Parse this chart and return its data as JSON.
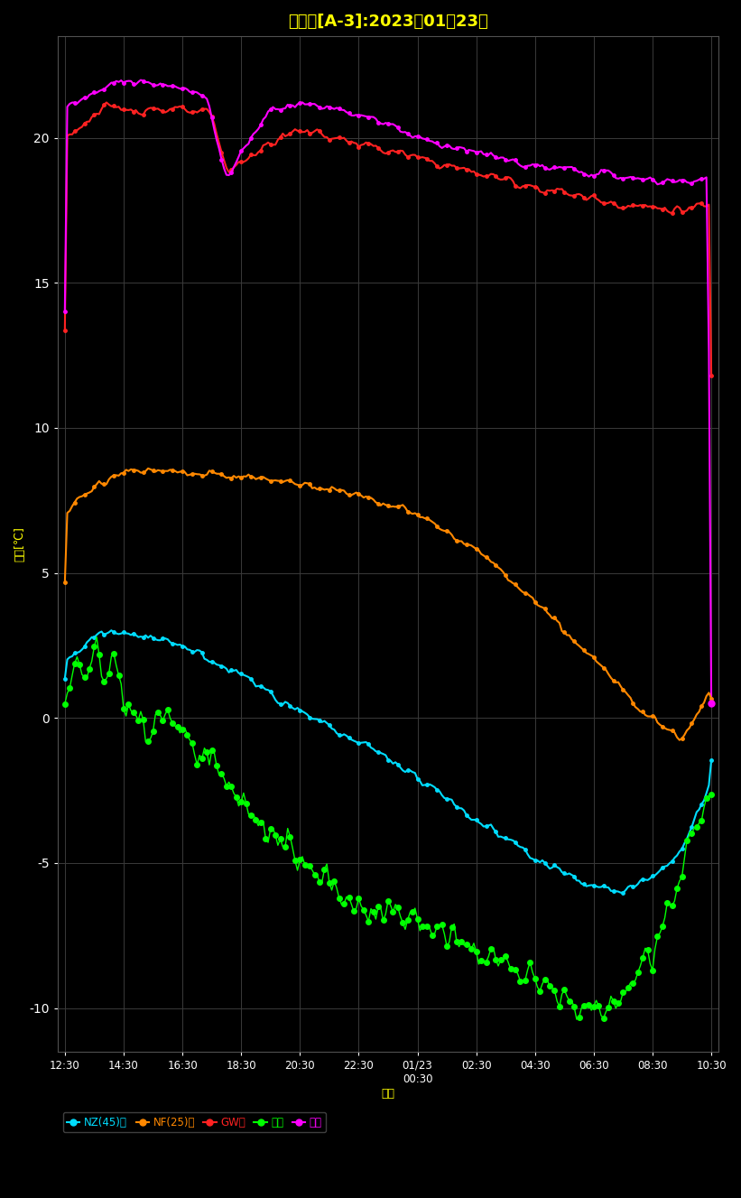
{
  "title": "展示場[A-3]:2023年01月23日",
  "ylabel": "気温[℃]",
  "xlabel": "日時",
  "background_color": "#000000",
  "text_color": "#ffff00",
  "grid_color": "#3a3a3a",
  "ylim": [
    -11.5,
    23.5
  ],
  "yticks": [
    -10,
    -5,
    0,
    5,
    10,
    15,
    20
  ],
  "xtick_labels": [
    "12:30",
    "14:30",
    "16:30",
    "18:30",
    "20:30",
    "22:30",
    "01/23\n00:30",
    "02:30",
    "04:30",
    "06:30",
    "08:30",
    "10:30"
  ],
  "series": {
    "NZ45": {
      "label": "NZ(45)外",
      "color": "#00ddff",
      "marker": "o",
      "markersize": 2.5,
      "linewidth": 1.5
    },
    "NF25": {
      "label": "NF(25)内",
      "color": "#ff8800",
      "marker": "o",
      "markersize": 2.5,
      "linewidth": 1.5
    },
    "GW": {
      "label": "GW内",
      "color": "#ff2222",
      "marker": "o",
      "markersize": 2.5,
      "linewidth": 1.5
    },
    "outside": {
      "label": "外気",
      "color": "#00ff00",
      "marker": "o",
      "markersize": 4,
      "linewidth": 1.0
    },
    "room": {
      "label": "室内",
      "color": "#ff00ff",
      "marker": "o",
      "markersize": 2.5,
      "linewidth": 1.5
    }
  }
}
